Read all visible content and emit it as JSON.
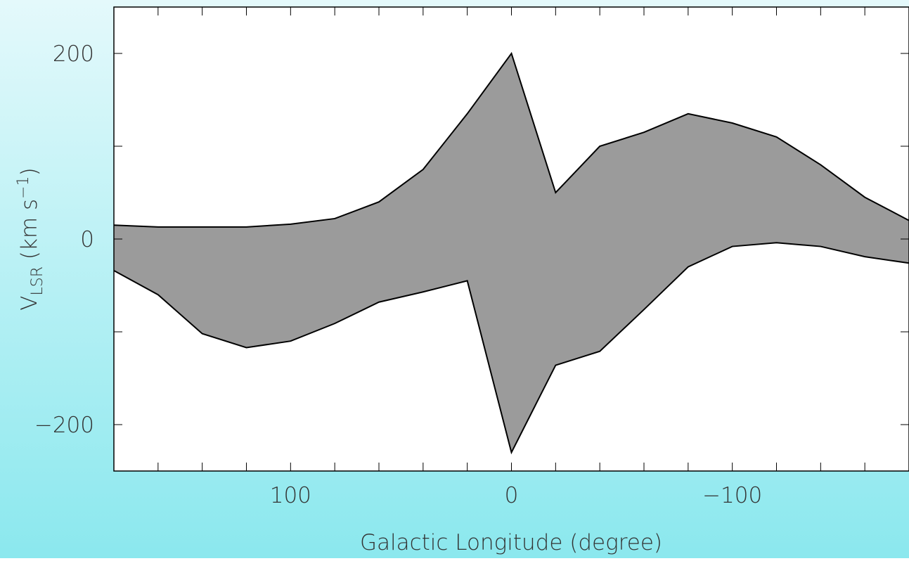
{
  "chart_data": {
    "type": "area",
    "xlabel": "Galactic Longitude (degree)",
    "ylabel_parts": [
      "V",
      "LSR",
      " (km s",
      "−1",
      ")"
    ],
    "x": [
      180,
      160,
      140,
      120,
      100,
      80,
      60,
      40,
      20,
      0,
      -20,
      -40,
      -60,
      -80,
      -100,
      -120,
      -140,
      -160,
      -180
    ],
    "series": [
      {
        "color": "#000000",
        "values": [
          15,
          13,
          13,
          13,
          16,
          22,
          40,
          75,
          135,
          200,
          50,
          100,
          115,
          135,
          125,
          110,
          80,
          45,
          20
        ]
      },
      {
        "color": "#000000",
        "values": [
          -34,
          -60,
          -102,
          -117,
          -110,
          -91,
          -68,
          -57,
          -45,
          -230,
          -136,
          -121,
          -76,
          -30,
          -8,
          -4,
          -8,
          -19,
          -26
        ]
      }
    ],
    "fill_color": "#7a7a7a",
    "xlim": [
      180,
      -180
    ],
    "ylim": [
      -250,
      250
    ],
    "xticks": [
      100,
      0,
      {
        "value": -100,
        "label": "−100"
      }
    ],
    "xminor_ticks": [
      160,
      140,
      120,
      80,
      60,
      40,
      20,
      -20,
      -40,
      -60,
      -80,
      -120,
      -140,
      -160
    ],
    "yticks": [
      {
        "value": -200,
        "label": "−200"
      },
      0,
      200
    ],
    "yminor_ticks": [
      -100,
      100
    ]
  }
}
